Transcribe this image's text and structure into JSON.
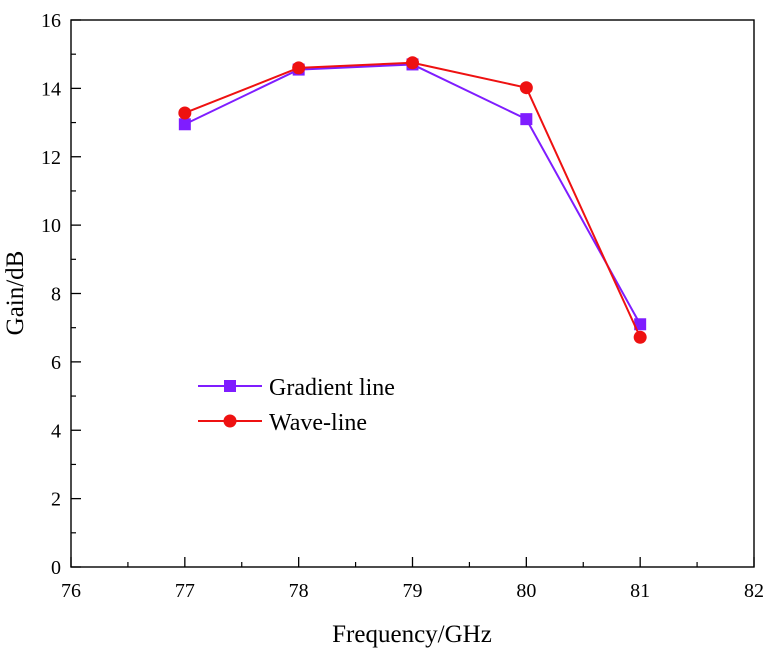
{
  "chart_data": {
    "type": "line",
    "title": "",
    "xlabel": "Frequency/GHz",
    "ylabel": "Gain/dB",
    "xlim": [
      76,
      82
    ],
    "ylim": [
      0,
      16
    ],
    "xticks": [
      76,
      77,
      78,
      79,
      80,
      81,
      82
    ],
    "yticks": [
      0,
      2,
      4,
      6,
      8,
      10,
      12,
      14,
      16
    ],
    "grid": false,
    "legend_position": "center-left",
    "x": [
      77,
      78,
      79,
      80,
      81
    ],
    "series": [
      {
        "name": "Gradient line",
        "color": "#7f1dff",
        "marker": "square",
        "values": [
          12.95,
          14.55,
          14.7,
          13.1,
          7.1
        ]
      },
      {
        "name": "Wave-line",
        "color": "#ee1111",
        "marker": "circle",
        "values": [
          13.28,
          14.6,
          14.75,
          14.02,
          6.72
        ]
      }
    ]
  }
}
